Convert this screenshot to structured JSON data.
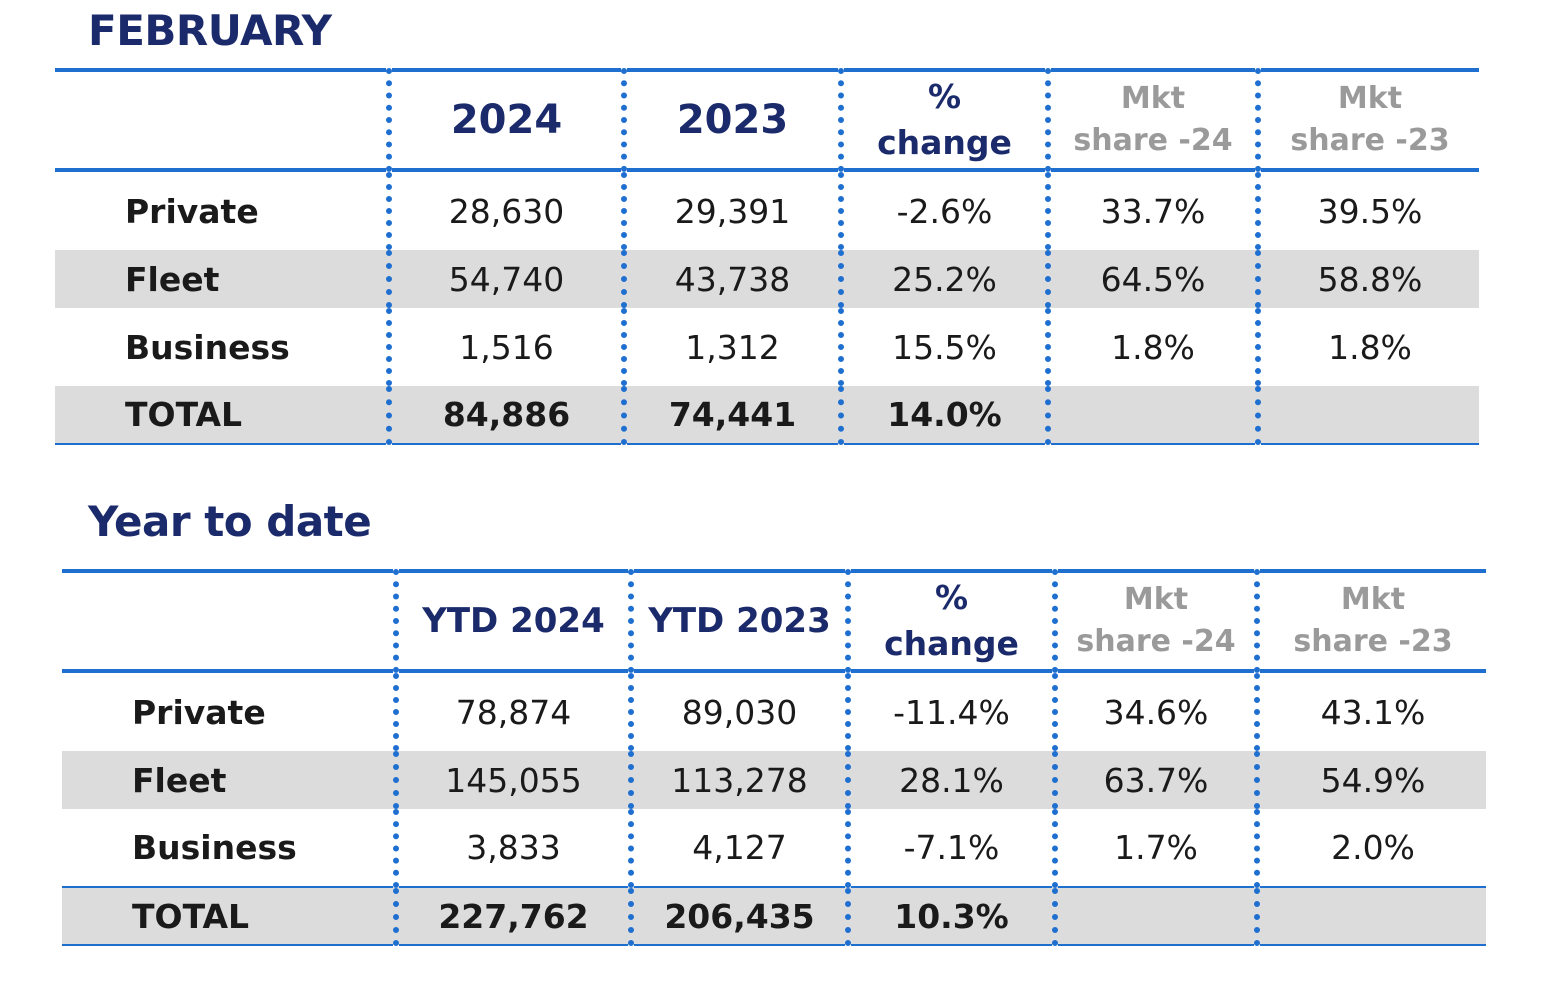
{
  "monthly": {
    "title": "FEBRUARY",
    "headers": {
      "col1": "2024",
      "col2": "2023",
      "change_line1": "%",
      "change_line2": "change",
      "mkt24_line1": "Mkt",
      "mkt24_line2": "share -24",
      "mkt23_line1": "Mkt",
      "mkt23_line2": "share -23"
    },
    "rows": [
      {
        "label": "Private",
        "v2024": "28,630",
        "v2023": "29,391",
        "change": "-2.6%",
        "mkt24": "33.7%",
        "mkt23": "39.5%"
      },
      {
        "label": "Fleet",
        "v2024": "54,740",
        "v2023": "43,738",
        "change": "25.2%",
        "mkt24": "64.5%",
        "mkt23": "58.8%"
      },
      {
        "label": "Business",
        "v2024": "1,516",
        "v2023": "1,312",
        "change": "15.5%",
        "mkt24": "1.8%",
        "mkt23": "1.8%"
      },
      {
        "label": "TOTAL",
        "v2024": "84,886",
        "v2023": "74,441",
        "change": "14.0%",
        "mkt24": "",
        "mkt23": ""
      }
    ]
  },
  "ytd": {
    "title": "Year to date",
    "headers": {
      "col1": "YTD 2024",
      "col2": "YTD 2023",
      "change_line1": "%",
      "change_line2": "change",
      "mkt24_line1": "Mkt",
      "mkt24_line2": "share -24",
      "mkt23_line1": "Mkt",
      "mkt23_line2": "share -23"
    },
    "rows": [
      {
        "label": "Private",
        "v2024": "78,874",
        "v2023": "89,030",
        "change": "-11.4%",
        "mkt24": "34.6%",
        "mkt23": "43.1%"
      },
      {
        "label": "Fleet",
        "v2024": "145,055",
        "v2023": "113,278",
        "change": "28.1%",
        "mkt24": "63.7%",
        "mkt23": "54.9%"
      },
      {
        "label": "Business",
        "v2024": "3,833",
        "v2023": "4,127",
        "change": "-7.1%",
        "mkt24": "1.7%",
        "mkt23": "2.0%"
      },
      {
        "label": "TOTAL",
        "v2024": "227,762",
        "v2023": "206,435",
        "change": "10.3%",
        "mkt24": "",
        "mkt23": ""
      }
    ]
  },
  "colors": {
    "title": "#1b2a6b",
    "rule": "#1f6fd1",
    "shade": "#dcdcdc",
    "muted_header": "#9a9a9a"
  }
}
